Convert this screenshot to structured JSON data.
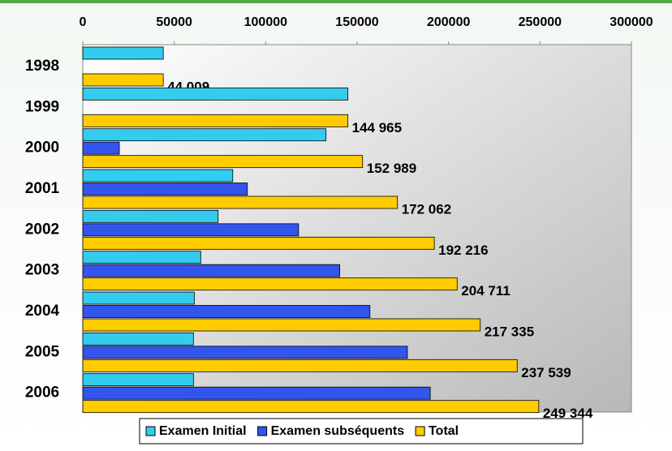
{
  "chart_data": {
    "type": "bar",
    "orientation": "horizontal",
    "categories": [
      "1998",
      "1999",
      "2000",
      "2001",
      "2002",
      "2003",
      "2004",
      "2005",
      "2006"
    ],
    "series": [
      {
        "name": "Examen Initial",
        "color": "#33ccee",
        "values": [
          44009,
          144965,
          133000,
          82000,
          74000,
          64500,
          61000,
          60500,
          60500
        ]
      },
      {
        "name": "Examen subséquents",
        "color": "#3355ee",
        "values": [
          null,
          null,
          20000,
          90000,
          118000,
          140500,
          157000,
          177500,
          190000
        ]
      },
      {
        "name": "Total",
        "color": "#ffcc00",
        "values": [
          44009,
          144965,
          152989,
          172062,
          192216,
          204711,
          217335,
          237539,
          249344
        ],
        "value_labels": [
          "44 009",
          "144 965",
          "152 989",
          "172 062",
          "192 216",
          "204 711",
          "217 335",
          "237 539",
          "249 344"
        ]
      }
    ],
    "xlim": [
      0,
      300000
    ],
    "xticks": [
      0,
      50000,
      100000,
      150000,
      200000,
      250000,
      300000
    ],
    "legend": "bottom"
  }
}
